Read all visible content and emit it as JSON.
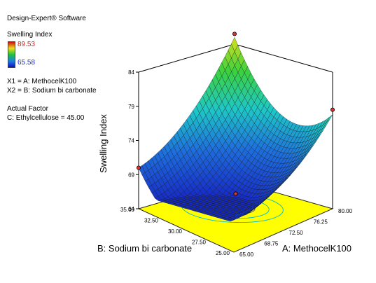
{
  "panel": {
    "software": "Design-Expert® Software",
    "response_name": "Swelling Index",
    "scale_high": "89.53",
    "scale_low": "65.58",
    "x1_line": "X1 = A: MethocelK100",
    "x2_line": "X2 = B: Sodium bi carbonate",
    "actual_factor_title": "Actual Factor",
    "actual_factor_value": "C: Ethylcellulose = 45.00",
    "scale_high_color": "#d42020",
    "scale_low_color": "#1a2fd0"
  },
  "chart_data": {
    "type": "surface3d",
    "title": "",
    "zlabel": "Swelling Index",
    "xlabel": "A: MethocelK100",
    "ylabel": "B: Sodium bi carbonate",
    "x_range": [
      65.0,
      80.0
    ],
    "y_range": [
      25.0,
      35.0
    ],
    "z_range": [
      64,
      84
    ],
    "x_ticks": [
      "65.00",
      "68.75",
      "72.50",
      "76.25",
      "80.00"
    ],
    "y_ticks": [
      "25.00",
      "27.50",
      "30.00",
      "32.50",
      "35.00"
    ],
    "z_ticks": [
      "64",
      "69",
      "74",
      "79",
      "84"
    ],
    "surface_model": {
      "center_x": 72.0,
      "center_y": 30.0,
      "z_min": 66.0,
      "a_quad": 24.0,
      "b_quad": 10.0
    },
    "corner_values": [
      {
        "x": 65.0,
        "y": 35.0,
        "z": 70.0
      },
      {
        "x": 65.0,
        "y": 25.0,
        "z": 85.0
      },
      {
        "x": 80.0,
        "y": 25.0,
        "z": 77.8
      },
      {
        "x": 80.0,
        "y": 35.0,
        "z": 67.3
      }
    ],
    "design_points": [
      {
        "x": 65.0,
        "y": 25.0,
        "z": 85.5
      },
      {
        "x": 80.0,
        "y": 25.0,
        "z": 78.5
      },
      {
        "x": 65.0,
        "y": 35.0,
        "z": 70.0
      },
      {
        "x": 72.5,
        "y": 30.0,
        "z": 66.2
      }
    ],
    "contour_floor_color": "#ffff00",
    "contour_line_color": "#00bcd4",
    "grid": false
  }
}
